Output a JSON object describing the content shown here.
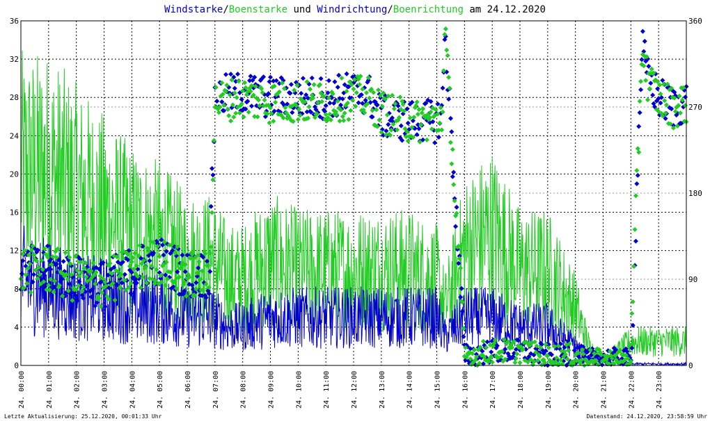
{
  "chart_data": {
    "type": "line",
    "title_parts": [
      {
        "text": "Windstarke",
        "color": "#0000cc"
      },
      {
        "text": "/",
        "color": "#000000"
      },
      {
        "text": "Boenstarke",
        "color": "#22cc22"
      },
      {
        "text": " und ",
        "color": "#000000"
      },
      {
        "text": "Windrichtung",
        "color": "#0000cc"
      },
      {
        "text": "/",
        "color": "#000000"
      },
      {
        "text": "Boenrichtung",
        "color": "#22cc22"
      },
      {
        "text": " am 24.12.2020",
        "color": "#000000"
      }
    ],
    "y_left": {
      "ylim": [
        0,
        36
      ],
      "ticks": [
        "0",
        "4",
        "8",
        "12",
        "16",
        "20",
        "24",
        "28",
        "32",
        "36"
      ]
    },
    "y_right": {
      "ylim": [
        0,
        360
      ],
      "ticks": [
        "0",
        "90",
        "180",
        "270",
        "360"
      ]
    },
    "x_axis": {
      "xlim": [
        0,
        24
      ],
      "tick_hours": [
        0,
        1,
        2,
        3,
        4,
        5,
        6,
        7,
        8,
        9,
        10,
        11,
        12,
        13,
        14,
        15,
        16,
        17,
        18,
        19,
        20,
        21,
        22,
        23
      ],
      "tick_labels": [
        "24. 00:00",
        "24. 01:00",
        "24. 02:00",
        "24. 03:00",
        "24. 04:00",
        "24. 05:00",
        "24. 06:00",
        "24. 07:00",
        "24. 08:00",
        "24. 09:00",
        "24. 10:00",
        "24. 11:00",
        "24. 12:00",
        "24. 13:00",
        "24. 14:00",
        "24. 15:00",
        "24. 16:00",
        "24. 17:00",
        "24. 18:00",
        "24. 19:00",
        "24. 20:00",
        "24. 21:00",
        "24. 22:00",
        "24. 23:00"
      ]
    },
    "grid": true,
    "series": [
      {
        "name": "Windstarke",
        "kind": "line",
        "axis": "left",
        "color": "#0000cc",
        "hours": [
          0,
          1,
          2,
          3,
          4,
          5,
          6,
          6.9,
          7.5,
          8,
          9,
          10,
          11,
          12,
          13,
          14,
          15,
          15.3,
          16,
          17,
          18,
          19,
          20,
          20.5,
          21,
          21.5,
          22,
          23,
          24
        ],
        "level": [
          9,
          8,
          7,
          7,
          6,
          6,
          5,
          5,
          4,
          4,
          5,
          5,
          5,
          5,
          5,
          5,
          5,
          3,
          5,
          5,
          4,
          4,
          2,
          0.5,
          1,
          0.5,
          0,
          0,
          0
        ]
      },
      {
        "name": "Boenstarke",
        "kind": "line",
        "axis": "left",
        "color": "#22cc22",
        "hours": [
          0,
          1,
          2,
          3,
          4,
          5,
          6,
          6.9,
          7.5,
          8,
          9,
          10,
          11,
          12,
          13,
          14,
          15,
          15.3,
          16,
          17,
          18,
          19,
          20,
          20.5,
          21,
          22,
          23,
          24
        ],
        "level": [
          20,
          20,
          18,
          16,
          14,
          13,
          11,
          11,
          9,
          9,
          11,
          10,
          10,
          10,
          10,
          10,
          9,
          6,
          12,
          14,
          10,
          10,
          6,
          2,
          0.5,
          2.5,
          2.5,
          2.5
        ]
      },
      {
        "name": "Windrichtung",
        "kind": "points",
        "axis": "right",
        "color": "#0000cc",
        "hours": [
          0,
          1,
          2,
          3,
          4,
          5,
          6,
          6.8,
          7,
          8,
          9,
          10,
          11,
          12,
          12.5,
          13,
          14,
          15,
          15.2,
          15.3,
          16,
          17,
          18,
          19,
          20,
          20.5,
          21,
          21.5,
          22,
          22.4,
          22.6,
          23,
          23.5,
          24
        ],
        "deg": [
          100,
          100,
          90,
          85,
          100,
          110,
          95,
          95,
          280,
          285,
          280,
          280,
          280,
          285,
          285,
          260,
          255,
          255,
          265,
          350,
          10,
          15,
          15,
          10,
          10,
          5,
          8,
          5,
          5,
          335,
          300,
          280,
          270,
          275
        ]
      },
      {
        "name": "Boenrichtung",
        "kind": "points",
        "axis": "right",
        "color": "#22cc22",
        "hours": [
          0,
          1,
          2,
          3,
          4,
          5,
          6,
          6.8,
          7,
          8,
          9,
          10,
          11,
          12,
          12.5,
          13,
          14,
          15,
          15.2,
          15.3,
          16,
          17,
          18,
          19,
          20,
          20.5,
          22,
          22.4,
          22.6,
          23,
          23.5,
          24
        ],
        "deg": [
          100,
          100,
          90,
          85,
          100,
          110,
          95,
          95,
          275,
          280,
          275,
          275,
          275,
          280,
          280,
          265,
          255,
          255,
          265,
          350,
          10,
          15,
          15,
          10,
          10,
          5,
          5,
          335,
          300,
          280,
          270,
          275
        ]
      }
    ]
  },
  "footer": {
    "left": "Letzte Aktualisierung: 25.12.2020, 00:01:33 Uhr",
    "right": "Datenstand: 24.12.2020, 23:58:59 Uhr"
  }
}
